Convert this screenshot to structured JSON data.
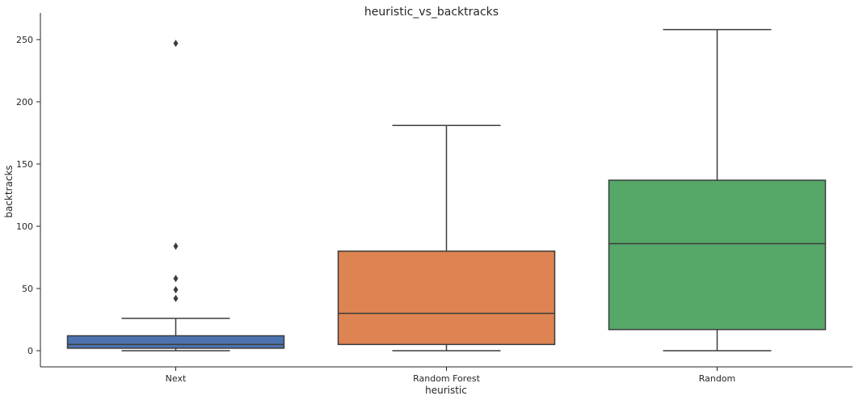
{
  "chart_data": {
    "type": "box",
    "title": "heuristic_vs_backtracks",
    "xlabel": "heuristic",
    "ylabel": "backtracks",
    "ylim": [
      -13,
      272
    ],
    "y_ticks": [
      0,
      50,
      100,
      150,
      200,
      250
    ],
    "grid": false,
    "categories": [
      "Next",
      "Random Forest",
      "Random"
    ],
    "boxes": [
      {
        "category": "Next",
        "color": "#4c72b0",
        "whisker_low": 0,
        "q1": 2,
        "median": 5,
        "q3": 12,
        "whisker_high": 26,
        "outliers": [
          42,
          49,
          58,
          84,
          247
        ]
      },
      {
        "category": "Random Forest",
        "color": "#dd8452",
        "whisker_low": 0,
        "q1": 5,
        "median": 30,
        "q3": 80,
        "whisker_high": 181,
        "outliers": []
      },
      {
        "category": "Random",
        "color": "#55a868",
        "whisker_low": 0,
        "q1": 17,
        "median": 86,
        "q3": 137,
        "whisker_high": 258,
        "outliers": []
      }
    ]
  }
}
